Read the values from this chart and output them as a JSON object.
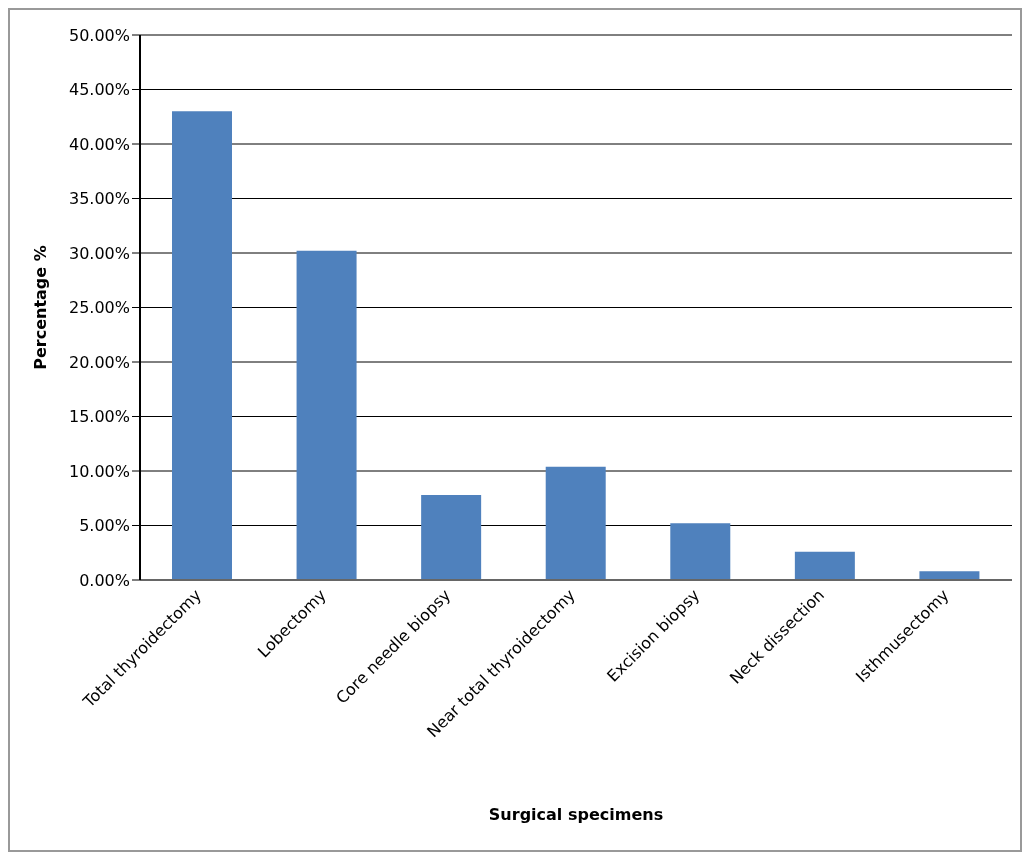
{
  "chart_data": {
    "type": "bar",
    "xlabel": "Surgical specimens",
    "ylabel": "Percentage %",
    "categories": [
      "Total thyroidectomy",
      "Lobectomy",
      "Core needle biopsy",
      "Near total thyroidectomy",
      "Excision biopsy",
      "Neck dissection",
      "Isthmusectomy"
    ],
    "values": [
      43.0,
      30.2,
      7.8,
      10.4,
      5.2,
      2.6,
      0.8
    ],
    "color": "#4f81bd",
    "ylim": [
      0,
      50
    ],
    "yticks": [
      {
        "value": 0,
        "label": "0.00%"
      },
      {
        "value": 5,
        "label": "5.00%"
      },
      {
        "value": 10,
        "label": "10.00%"
      },
      {
        "value": 15,
        "label": "15.00%"
      },
      {
        "value": 20,
        "label": "20.00%"
      },
      {
        "value": 25,
        "label": "25.00%"
      },
      {
        "value": 30,
        "label": "30.00%"
      },
      {
        "value": 35,
        "label": "35.00%"
      },
      {
        "value": 40,
        "label": "40.00%"
      },
      {
        "value": 45,
        "label": "45.00%"
      },
      {
        "value": 50,
        "label": "50.00%"
      }
    ],
    "grid": "y",
    "legend": false
  }
}
